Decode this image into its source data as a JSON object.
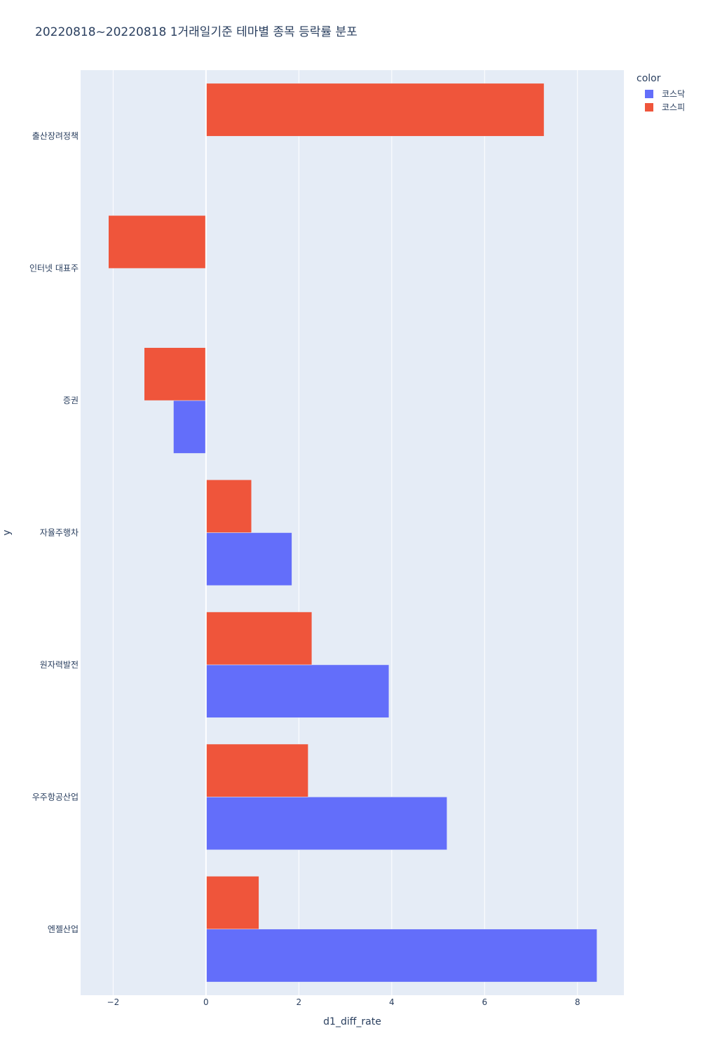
{
  "chart_data": {
    "type": "bar",
    "orientation": "horizontal",
    "barmode": "group",
    "title": "20220818~20220818 1거래일기준 테마별 종목 등락률 분포",
    "xlabel": "d1_diff_rate",
    "ylabel": "y",
    "xlim": [
      -2.7,
      9.0
    ],
    "x_ticks": [
      -2,
      0,
      2,
      4,
      6,
      8
    ],
    "x_tick_labels": [
      "−2",
      "0",
      "2",
      "4",
      "6",
      "8"
    ],
    "grid": true,
    "legend_position": "top-right",
    "legend_title": "color",
    "categories": [
      "출산장려정책",
      "인터넷 대표주",
      "증권",
      "자율주행차",
      "원자력발전",
      "우주항공산업",
      "엔젤산업"
    ],
    "series": [
      {
        "name": "코스닥",
        "color": "#636efa",
        "values": [
          null,
          null,
          -0.7,
          1.85,
          3.94,
          5.19,
          8.42
        ]
      },
      {
        "name": "코스피",
        "color": "#ef553b",
        "values": [
          7.28,
          -2.1,
          -1.33,
          0.98,
          2.28,
          2.2,
          1.14
        ]
      }
    ]
  },
  "colors": {
    "plot_bg": "#e5ecf6",
    "grid": "#ffffff",
    "text": "#2a3f5f"
  }
}
